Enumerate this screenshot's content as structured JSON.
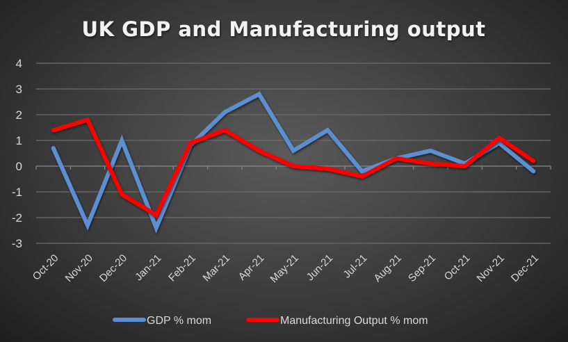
{
  "chart_data": {
    "type": "line",
    "title": "UK GDP and Manufacturing output",
    "xlabel": "",
    "ylabel": "",
    "ylim": [
      -3,
      4
    ],
    "yticks": [
      4,
      3,
      2,
      1,
      0,
      -1,
      -2,
      -3
    ],
    "grid": true,
    "legend_position": "bottom",
    "categories": [
      "Oct-20",
      "Nov-20",
      "Dec-20",
      "Jan-21",
      "Feb-21",
      "Mar-21",
      "Apr-21",
      "May-21",
      "Jun-21",
      "Jul-21",
      "Aug-21",
      "Sep-21",
      "Oct-21",
      "Nov-21",
      "Dec-21"
    ],
    "series": [
      {
        "name": "GDP % mom",
        "color": "#5b8fd1",
        "values": [
          0.7,
          -2.3,
          1.0,
          -2.4,
          0.8,
          2.1,
          2.8,
          0.6,
          1.4,
          -0.2,
          0.3,
          0.6,
          0.1,
          0.9,
          -0.2
        ]
      },
      {
        "name": "Manufacturing Output % mom",
        "color": "#ff0000",
        "values": [
          1.4,
          1.8,
          -1.1,
          -1.9,
          0.9,
          1.4,
          0.6,
          0.0,
          -0.1,
          -0.4,
          0.3,
          0.1,
          0.0,
          1.1,
          0.2
        ]
      }
    ]
  }
}
